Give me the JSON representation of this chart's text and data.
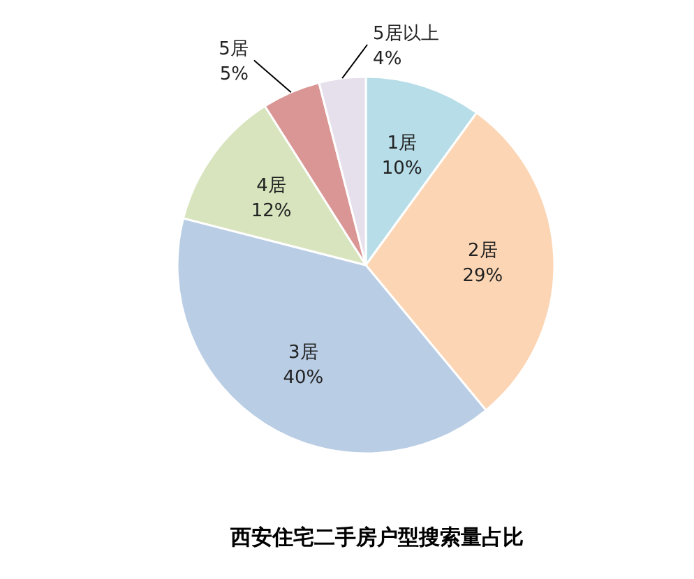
{
  "chart_data": {
    "type": "pie",
    "title": "西安住宅二手房户型搜索量占比",
    "categories": [
      "1居",
      "2居",
      "3居",
      "4居",
      "5居",
      "5居以上"
    ],
    "values": [
      10,
      29,
      40,
      12,
      5,
      4
    ],
    "colors": [
      "#b7dde8",
      "#fcd5b4",
      "#b9cde5",
      "#d7e4bd",
      "#d99694",
      "#e6e0ec"
    ],
    "value_labels": [
      "10%",
      "29%",
      "40%",
      "12%",
      "5%",
      "4%"
    ]
  }
}
